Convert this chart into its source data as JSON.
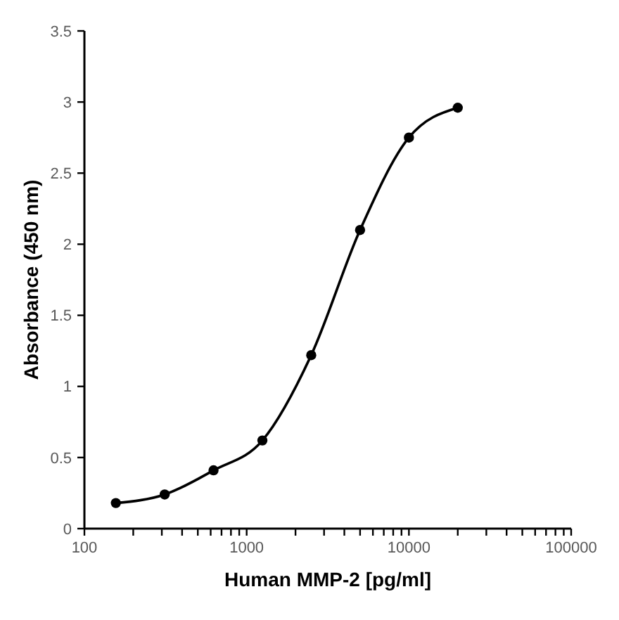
{
  "chart_data": {
    "type": "line",
    "xlabel": "Human MMP-2 [pg/ml]",
    "ylabel": "Absorbance (450 nm)",
    "x": [
      156.25,
      312.5,
      625,
      1250,
      2500,
      5000,
      10000,
      20000
    ],
    "series": [
      {
        "color": "#000000",
        "values": [
          0.18,
          0.24,
          0.41,
          0.62,
          1.22,
          2.1,
          2.75,
          2.96
        ]
      }
    ],
    "log": "x",
    "xlim": [
      100,
      100000
    ],
    "xticks": [
      100,
      {
        "value": 200,
        "label": null
      },
      {
        "value": 300,
        "label": null
      },
      {
        "value": 400,
        "label": null
      },
      {
        "value": 500,
        "label": null
      },
      {
        "value": 600,
        "label": null
      },
      {
        "value": 700,
        "label": null
      },
      {
        "value": 800,
        "label": null
      },
      {
        "value": 900,
        "label": null
      },
      1000,
      {
        "value": 2000,
        "label": null
      },
      {
        "value": 3000,
        "label": null
      },
      {
        "value": 4000,
        "label": null
      },
      {
        "value": 5000,
        "label": null
      },
      {
        "value": 6000,
        "label": null
      },
      {
        "value": 7000,
        "label": null
      },
      {
        "value": 8000,
        "label": null
      },
      {
        "value": 9000,
        "label": null
      },
      10000,
      {
        "value": 20000,
        "label": null
      },
      {
        "value": 30000,
        "label": null
      },
      {
        "value": 40000,
        "label": null
      },
      {
        "value": 50000,
        "label": null
      },
      {
        "value": 60000,
        "label": null
      },
      {
        "value": 70000,
        "label": null
      },
      {
        "value": 80000,
        "label": null
      },
      {
        "value": 90000,
        "label": null
      },
      100000
    ],
    "ylim": [
      0,
      3.5
    ],
    "yticks": [
      0,
      0.5,
      1,
      1.5,
      2,
      2.5,
      3,
      3.5
    ],
    "grid": false,
    "marker": "circle",
    "line_style": "solid"
  }
}
